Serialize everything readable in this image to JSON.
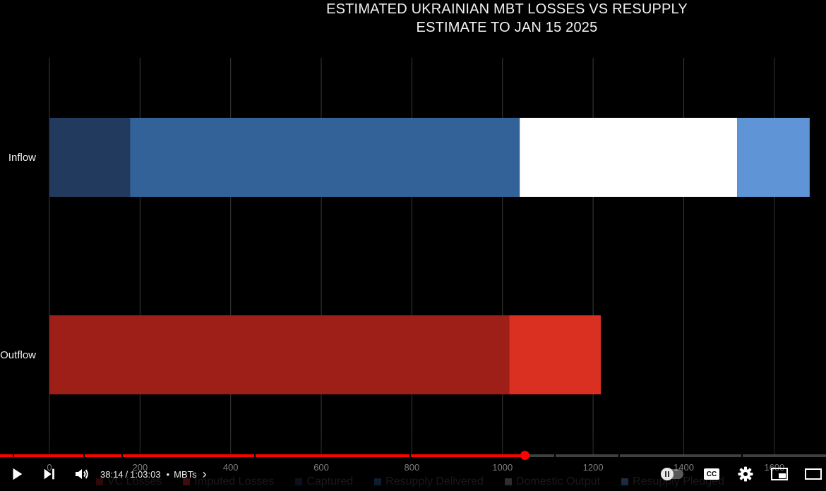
{
  "chart_data": {
    "type": "bar",
    "orientation": "horizontal",
    "stacked": true,
    "title": "ESTIMATED UKRAINIAN MBT LOSSES VS RESUPPLY ESTIMATE TO JAN 15 2025",
    "title_lines": [
      "ESTIMATED UKRAINIAN MBT LOSSES VS RESUPPLY",
      "ESTIMATE TO JAN 15 2025"
    ],
    "categories": [
      "Inflow",
      "Outflow"
    ],
    "series": [
      {
        "name": "VC Losses",
        "color": "#9e1f18",
        "values": [
          0,
          1015
        ]
      },
      {
        "name": "Imputed Losses",
        "color": "#d93022",
        "values": [
          0,
          202
        ]
      },
      {
        "name": "Captured",
        "color": "#223a5e",
        "values": [
          178,
          0
        ]
      },
      {
        "name": "Resupply Delivered",
        "color": "#336299",
        "values": [
          860,
          0
        ]
      },
      {
        "name": "Domestic Output",
        "color": "#ffffff",
        "values": [
          480,
          0
        ]
      },
      {
        "name": "Resupply Pledged",
        "color": "#5f95d6",
        "values": [
          160,
          0
        ]
      }
    ],
    "xlim": [
      0,
      1700
    ],
    "xticks": [
      "0",
      "200",
      "400",
      "600",
      "800",
      "1000",
      "1200",
      "1400",
      "1600"
    ],
    "grid": true,
    "legend_placement": "bottom",
    "xlabel": "",
    "ylabel": ""
  },
  "player": {
    "current_time": "38:14",
    "time_separator": "/",
    "duration": "1:03:03",
    "chapter_dot": "•",
    "chapter": "MBTs",
    "chapter_arrow": "›",
    "progress_fraction": 0.635,
    "accent_color": "#ff0000",
    "cc_label": "CC",
    "icons": {
      "play": "play-icon",
      "next": "next-icon",
      "volume": "volume-icon",
      "autoplay": "autoplay-toggle",
      "cc": "subtitles-icon",
      "settings": "gear-icon",
      "miniplayer": "miniplayer-icon",
      "theater": "theater-icon"
    }
  }
}
